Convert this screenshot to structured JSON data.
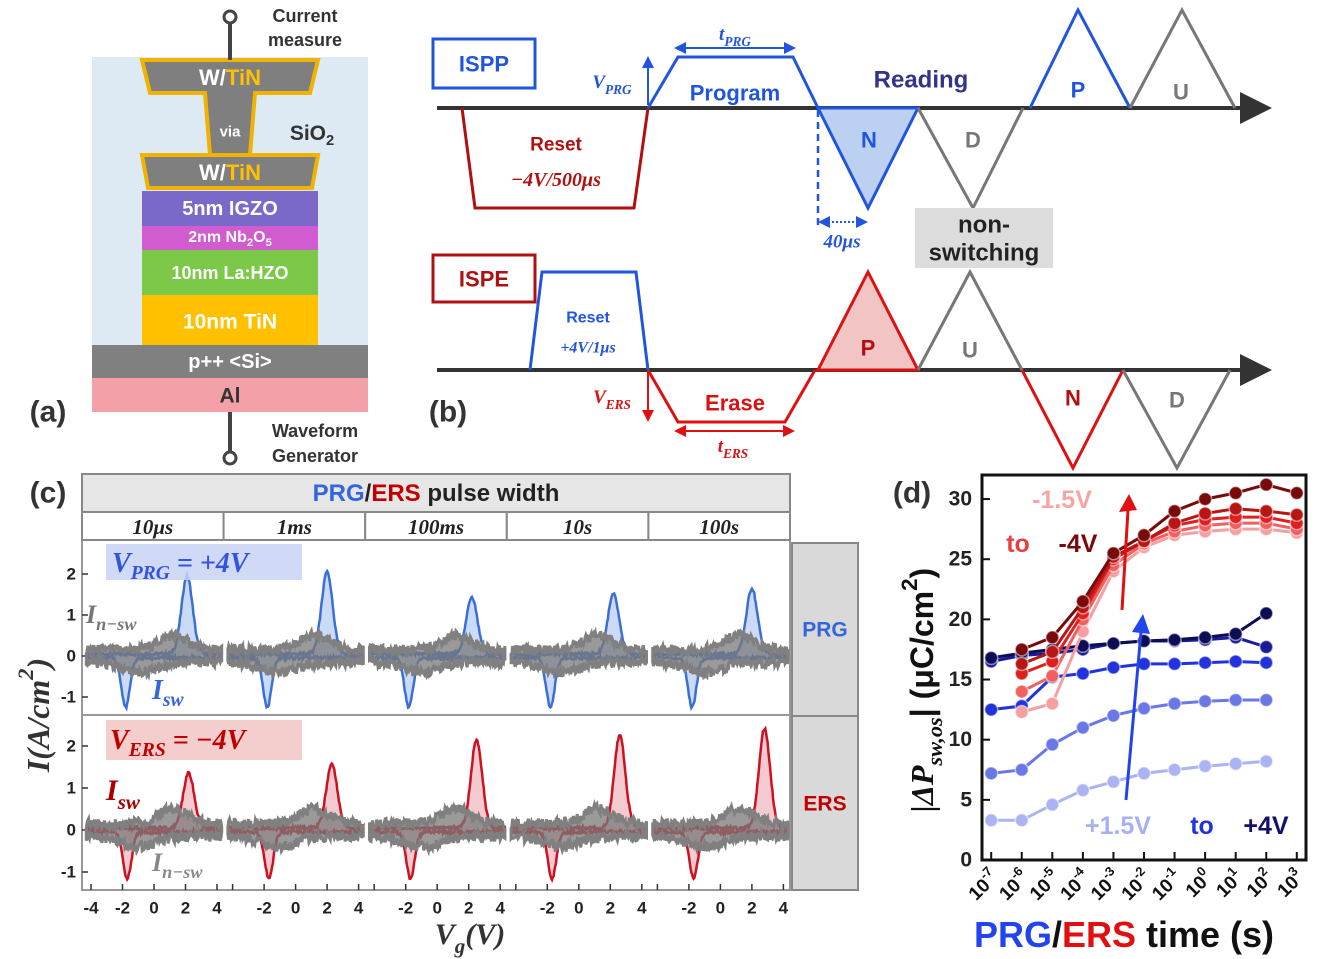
{
  "panel_a": {
    "label": "(a)",
    "top_terminal": [
      "Current",
      "measure"
    ],
    "bottom_terminal": [
      "Waveform",
      "Generator"
    ],
    "top_contact": {
      "w": "W/",
      "tin": "TiN"
    },
    "via": "via",
    "oxide": {
      "text": "SiO",
      "sub": "2"
    },
    "bottom_contact": {
      "w": "W/",
      "tin": "TiN"
    },
    "igzo": "5nm IGZO",
    "nbo": [
      "2nm Nb",
      "2",
      "O",
      "5"
    ],
    "hzo": "10nm La:HZO",
    "tin": "10nm TiN",
    "si": "p++ <Si>",
    "al": "Al"
  },
  "panel_b": {
    "label": "(b)",
    "ispp": "ISPP",
    "ispe": "ISPE",
    "t_prg": [
      "t",
      "PRG"
    ],
    "v_prg": [
      "V",
      "PRG"
    ],
    "program": "Program",
    "reading": "Reading",
    "reset_top": [
      "Reset",
      "−4V/500μs"
    ],
    "pulses_top": [
      "N",
      "D",
      "P",
      "U"
    ],
    "delay": "40μs",
    "non_switching": [
      "non-",
      "switching"
    ],
    "reset_bottom": [
      "Reset",
      "+4V/1μs"
    ],
    "v_ers": [
      "V",
      "ERS"
    ],
    "erase": "Erase",
    "t_ers": [
      "t",
      "ERS"
    ],
    "pulses_bottom": [
      "P",
      "U",
      "N",
      "D"
    ]
  },
  "panel_c": {
    "label": "(c)",
    "header": [
      "PRG",
      "/",
      "ERS",
      " pulse width"
    ],
    "widths": [
      "10μs",
      "1ms",
      "100ms",
      "10s",
      "100s"
    ],
    "rows": [
      "PRG",
      "ERS"
    ],
    "yticks_top": [
      -1,
      0,
      1,
      2
    ],
    "yticks_bottom": [
      -1,
      0,
      1,
      2
    ],
    "xticks": [
      -4,
      -2,
      0,
      2,
      4
    ],
    "ylabel": [
      "I(A/cm",
      "2",
      ")"
    ],
    "xlabel": [
      "V",
      "g",
      "(V)"
    ],
    "v_prg": [
      "V",
      "PRG",
      " = +4V"
    ],
    "v_ers": [
      "V",
      "ERS",
      " = −4V"
    ],
    "i_nsw_top": [
      "I",
      "n−sw"
    ],
    "i_sw_top": [
      "I",
      "sw"
    ],
    "i_sw_bottom": [
      "I",
      "sw"
    ],
    "i_nsw_bottom": [
      "I",
      "n−sw"
    ]
  },
  "chart_data": {
    "type": "line",
    "label": "(d)",
    "xlog": true,
    "xlim": [
      5e-08,
      2000
    ],
    "ylim": [
      0,
      32
    ],
    "yticks": [
      0,
      5,
      10,
      15,
      20,
      25,
      30
    ],
    "xticks": [
      {
        "value": 1e-07,
        "label": "10",
        "exponent": "-7"
      },
      {
        "value": 1e-06,
        "label": "10",
        "exponent": "-6"
      },
      {
        "value": 1e-05,
        "label": "10",
        "exponent": "-5"
      },
      {
        "value": 0.0001,
        "label": "10",
        "exponent": "-4"
      },
      {
        "value": 0.001,
        "label": "10",
        "exponent": "-3"
      },
      {
        "value": 0.01,
        "label": "10",
        "exponent": "-2"
      },
      {
        "value": 0.1,
        "label": "10",
        "exponent": "-1"
      },
      {
        "value": 1,
        "label": "10",
        "exponent": "0"
      },
      {
        "value": 10,
        "label": "10",
        "exponent": "1"
      },
      {
        "value": 100,
        "label": "10",
        "exponent": "2"
      },
      {
        "value": 1000,
        "label": "10",
        "exponent": "3"
      }
    ],
    "ylabel": [
      "|ΔP",
      "sw,os",
      "| (μC/cm",
      "2",
      ")"
    ],
    "xlabel": [
      "PRG",
      "/",
      "ERS",
      " time (s)"
    ],
    "annotations": {
      "erase": [
        "-1.5V",
        "to",
        "-4V"
      ],
      "program": [
        "+1.5V",
        "to",
        "+4V"
      ]
    },
    "series": [
      {
        "color": "#aab4f2",
        "x": [
          1e-07,
          1e-06,
          1e-05,
          0.0001,
          0.001,
          0.01,
          0.1,
          1,
          10,
          100
        ],
        "values": [
          3.3,
          3.3,
          4.6,
          5.8,
          6.5,
          7.2,
          7.5,
          7.8,
          8.0,
          8.2
        ]
      },
      {
        "color": "#6a78e6",
        "x": [
          1e-07,
          1e-06,
          1e-05,
          0.0001,
          0.001,
          0.01,
          0.1,
          1,
          10,
          100
        ],
        "values": [
          7.2,
          7.5,
          9.6,
          11,
          12,
          12.6,
          13,
          13.2,
          13.3,
          13.3
        ]
      },
      {
        "color": "#2233dd",
        "x": [
          1e-07,
          1e-06,
          1e-05,
          0.0001,
          0.001,
          0.01,
          0.1,
          1,
          10,
          100
        ],
        "values": [
          12.5,
          12.8,
          15.2,
          15.5,
          16,
          16.3,
          16.3,
          16.4,
          16.5,
          16.4
        ]
      },
      {
        "color": "#1a1a9a",
        "x": [
          1e-07,
          1e-06,
          1e-05,
          0.0001,
          0.001,
          0.01,
          0.1,
          1,
          10,
          100
        ],
        "values": [
          16.5,
          17,
          17.2,
          17.5,
          18,
          18.2,
          18.2,
          18.3,
          18.5,
          17.7
        ]
      },
      {
        "color": "#0d0d55",
        "x": [
          1e-07,
          1e-06,
          1e-05,
          0.0001,
          0.001,
          0.01,
          0.1,
          1,
          10,
          100
        ],
        "values": [
          16.8,
          17.2,
          17.5,
          17.8,
          18,
          18.2,
          18.3,
          18.5,
          18.8,
          20.5
        ]
      },
      {
        "color": "#f5a0a0",
        "x": [
          1e-06,
          1e-05,
          0.0001,
          0.001,
          0.01,
          0.1,
          1,
          10,
          100,
          1000
        ],
        "values": [
          12.3,
          13,
          19,
          24,
          26,
          27,
          27.3,
          27.5,
          27.5,
          27.2
        ]
      },
      {
        "color": "#f06060",
        "x": [
          1e-06,
          1e-05,
          0.0001,
          0.001,
          0.01,
          0.1,
          1,
          10,
          100,
          1000
        ],
        "values": [
          14,
          15.3,
          20,
          24.5,
          26.3,
          27.3,
          27.8,
          28,
          28,
          27.5
        ]
      },
      {
        "color": "#e02020",
        "x": [
          1e-06,
          1e-05,
          0.0001,
          0.001,
          0.01,
          0.1,
          1,
          10,
          100,
          1000
        ],
        "values": [
          15.5,
          16.5,
          20.5,
          25,
          26.5,
          27.8,
          28.3,
          28.5,
          28.5,
          28
        ]
      },
      {
        "color": "#b81515",
        "x": [
          1e-06,
          1e-05,
          0.0001,
          0.001,
          0.01,
          0.1,
          1,
          10,
          100,
          1000
        ],
        "values": [
          16.3,
          17.3,
          21,
          25.2,
          26.5,
          28,
          28.8,
          29.2,
          29,
          28.7
        ]
      },
      {
        "color": "#7a0a0a",
        "x": [
          1e-06,
          1e-05,
          0.0001,
          0.001,
          0.01,
          0.1,
          1,
          10,
          100,
          1000
        ],
        "values": [
          17.5,
          18.5,
          21.5,
          25.5,
          27,
          29,
          30,
          30.5,
          31.2,
          30.5
        ]
      }
    ]
  }
}
